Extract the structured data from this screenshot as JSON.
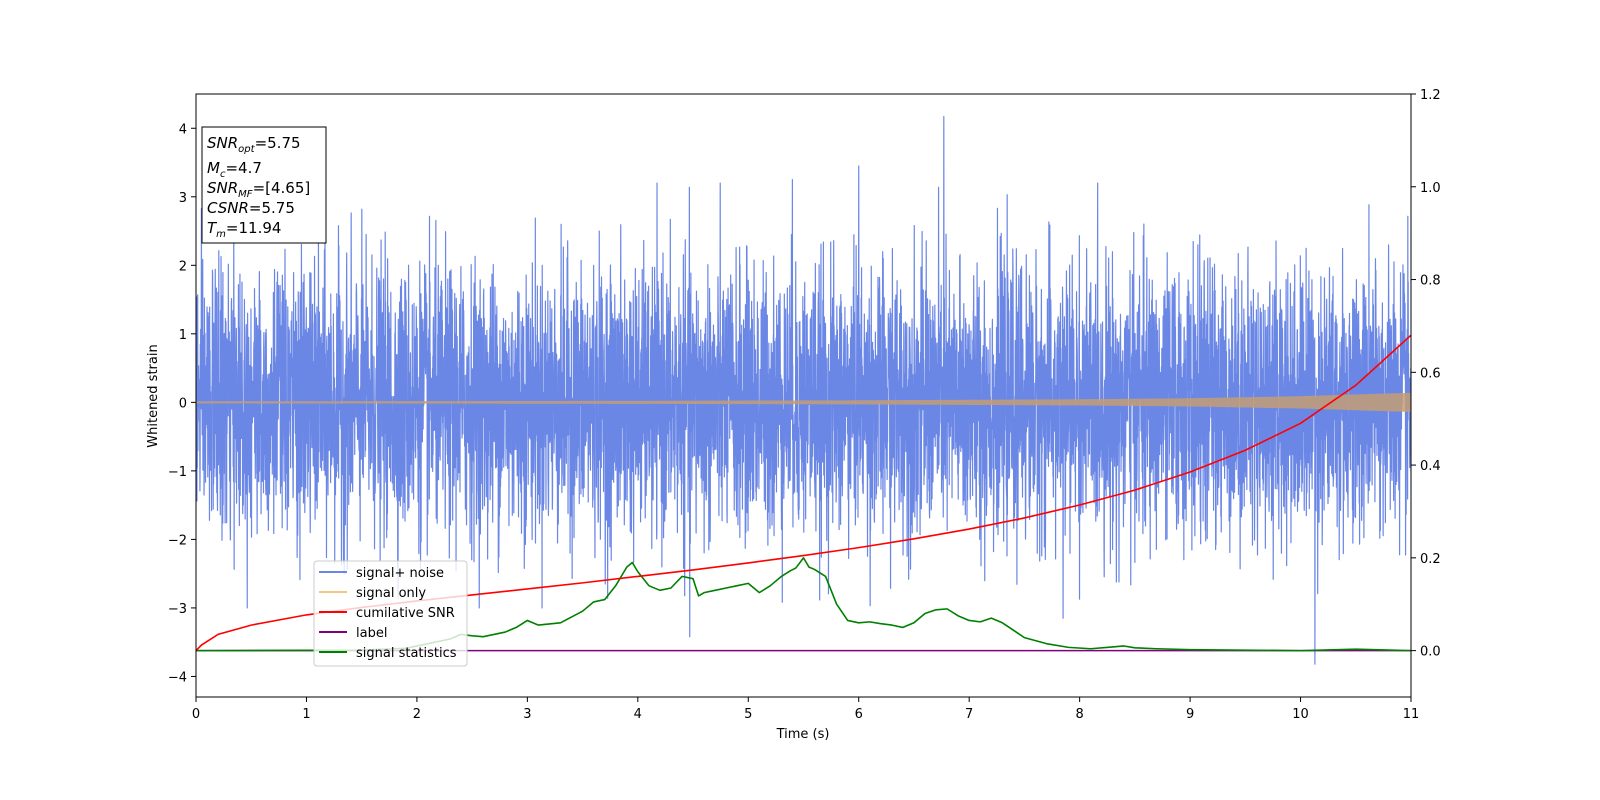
{
  "chart_data": {
    "type": "line",
    "xlabel": "Time (s)",
    "ylabel": "Whitened strain",
    "xlim": [
      0,
      11
    ],
    "ylim": [
      -4.3,
      4.5
    ],
    "y2lim": [
      -0.1,
      1.2
    ],
    "xticks": [
      "0",
      "1",
      "2",
      "3",
      "4",
      "5",
      "6",
      "7",
      "8",
      "9",
      "10",
      "11"
    ],
    "yticks": [
      "−4",
      "−3",
      "−2",
      "−1",
      "0",
      "1",
      "2",
      "3",
      "4"
    ],
    "y2ticks": [
      "0.0",
      "0.2",
      "0.4",
      "0.6",
      "0.8",
      "1.0",
      "1.2"
    ],
    "legend_position": "lower-left",
    "legend": [
      {
        "label": "signal+ noise",
        "color": "#6b87e6"
      },
      {
        "label": "signal only",
        "color": "#f5c77e"
      },
      {
        "label": "cumilative SNR",
        "color": "#ff0000"
      },
      {
        "label": "label",
        "color": "#800080"
      },
      {
        "label": "signal statistics",
        "color": "#008000"
      }
    ],
    "annotation": {
      "snr_opt": {
        "name": "SNR",
        "sub": "opt",
        "value": "=5.75"
      },
      "mc": {
        "name": "M",
        "sub": "c",
        "value": "=4.7"
      },
      "snr_mf": {
        "name": "SNR",
        "sub": "MF",
        "value": "=[4.65]"
      },
      "csnr": {
        "name": "CSNR",
        "value": "=5.75"
      },
      "tm": {
        "name": "T",
        "sub": "m",
        "value": "=11.94"
      }
    },
    "series": [
      {
        "name": "signal+ noise",
        "axis": "left",
        "color": "#6b87e6",
        "noise_sigma": 0.95,
        "notable_peaks": [
          [
            6.77,
            4.17
          ],
          [
            5.4,
            3.25
          ],
          [
            6.0,
            3.45
          ],
          [
            10.13,
            -3.82
          ],
          [
            4.47,
            -3.42
          ],
          [
            7.85,
            -3.15
          ]
        ]
      },
      {
        "name": "signal only",
        "axis": "left",
        "color": "#f5c77e",
        "envelope": {
          "x": [
            0,
            2,
            4,
            6,
            8,
            9,
            10,
            11
          ],
          "amplitude": [
            0.015,
            0.018,
            0.022,
            0.03,
            0.045,
            0.06,
            0.09,
            0.14
          ]
        }
      },
      {
        "name": "cumilative SNR",
        "axis": "right",
        "color": "#ff0000",
        "x": [
          0,
          0.05,
          0.2,
          0.5,
          1,
          1.5,
          2,
          2.5,
          3,
          3.5,
          4,
          4.5,
          5,
          5.5,
          6,
          6.5,
          7,
          7.5,
          8,
          8.5,
          9,
          9.5,
          10,
          10.5,
          11
        ],
        "y": [
          0.0,
          0.012,
          0.035,
          0.055,
          0.077,
          0.093,
          0.107,
          0.12,
          0.133,
          0.146,
          0.16,
          0.174,
          0.189,
          0.205,
          0.222,
          0.241,
          0.262,
          0.286,
          0.314,
          0.346,
          0.385,
          0.432,
          0.49,
          0.572,
          0.68
        ]
      },
      {
        "name": "label",
        "axis": "right",
        "color": "#800080",
        "x": [
          0,
          11
        ],
        "y": [
          0,
          0
        ]
      },
      {
        "name": "signal statistics",
        "axis": "right",
        "color": "#008000",
        "x": [
          0,
          1.5,
          1.9,
          2.1,
          2.3,
          2.4,
          2.5,
          2.6,
          2.8,
          2.9,
          3.0,
          3.1,
          3.3,
          3.5,
          3.6,
          3.7,
          3.8,
          3.9,
          3.95,
          4.0,
          4.1,
          4.2,
          4.3,
          4.4,
          4.5,
          4.55,
          4.6,
          4.7,
          4.8,
          4.9,
          5.0,
          5.1,
          5.2,
          5.3,
          5.38,
          5.43,
          5.5,
          5.55,
          5.6,
          5.7,
          5.8,
          5.9,
          6.0,
          6.1,
          6.2,
          6.3,
          6.4,
          6.5,
          6.6,
          6.7,
          6.8,
          6.9,
          7.0,
          7.1,
          7.2,
          7.3,
          7.5,
          7.7,
          7.9,
          8.1,
          8.3,
          8.4,
          8.5,
          8.7,
          9.0,
          9.5,
          10.0,
          10.5,
          11.0
        ],
        "y": [
          0.0,
          0.001,
          0.005,
          0.015,
          0.025,
          0.035,
          0.032,
          0.03,
          0.04,
          0.05,
          0.065,
          0.055,
          0.06,
          0.085,
          0.105,
          0.11,
          0.14,
          0.18,
          0.19,
          0.17,
          0.14,
          0.13,
          0.135,
          0.16,
          0.155,
          0.118,
          0.125,
          0.13,
          0.135,
          0.14,
          0.145,
          0.125,
          0.14,
          0.16,
          0.172,
          0.178,
          0.2,
          0.18,
          0.175,
          0.16,
          0.1,
          0.065,
          0.06,
          0.062,
          0.058,
          0.055,
          0.05,
          0.06,
          0.08,
          0.088,
          0.09,
          0.075,
          0.065,
          0.062,
          0.07,
          0.06,
          0.028,
          0.015,
          0.007,
          0.004,
          0.008,
          0.01,
          0.006,
          0.004,
          0.002,
          0.001,
          0.0,
          0.003,
          0.0
        ]
      }
    ]
  }
}
